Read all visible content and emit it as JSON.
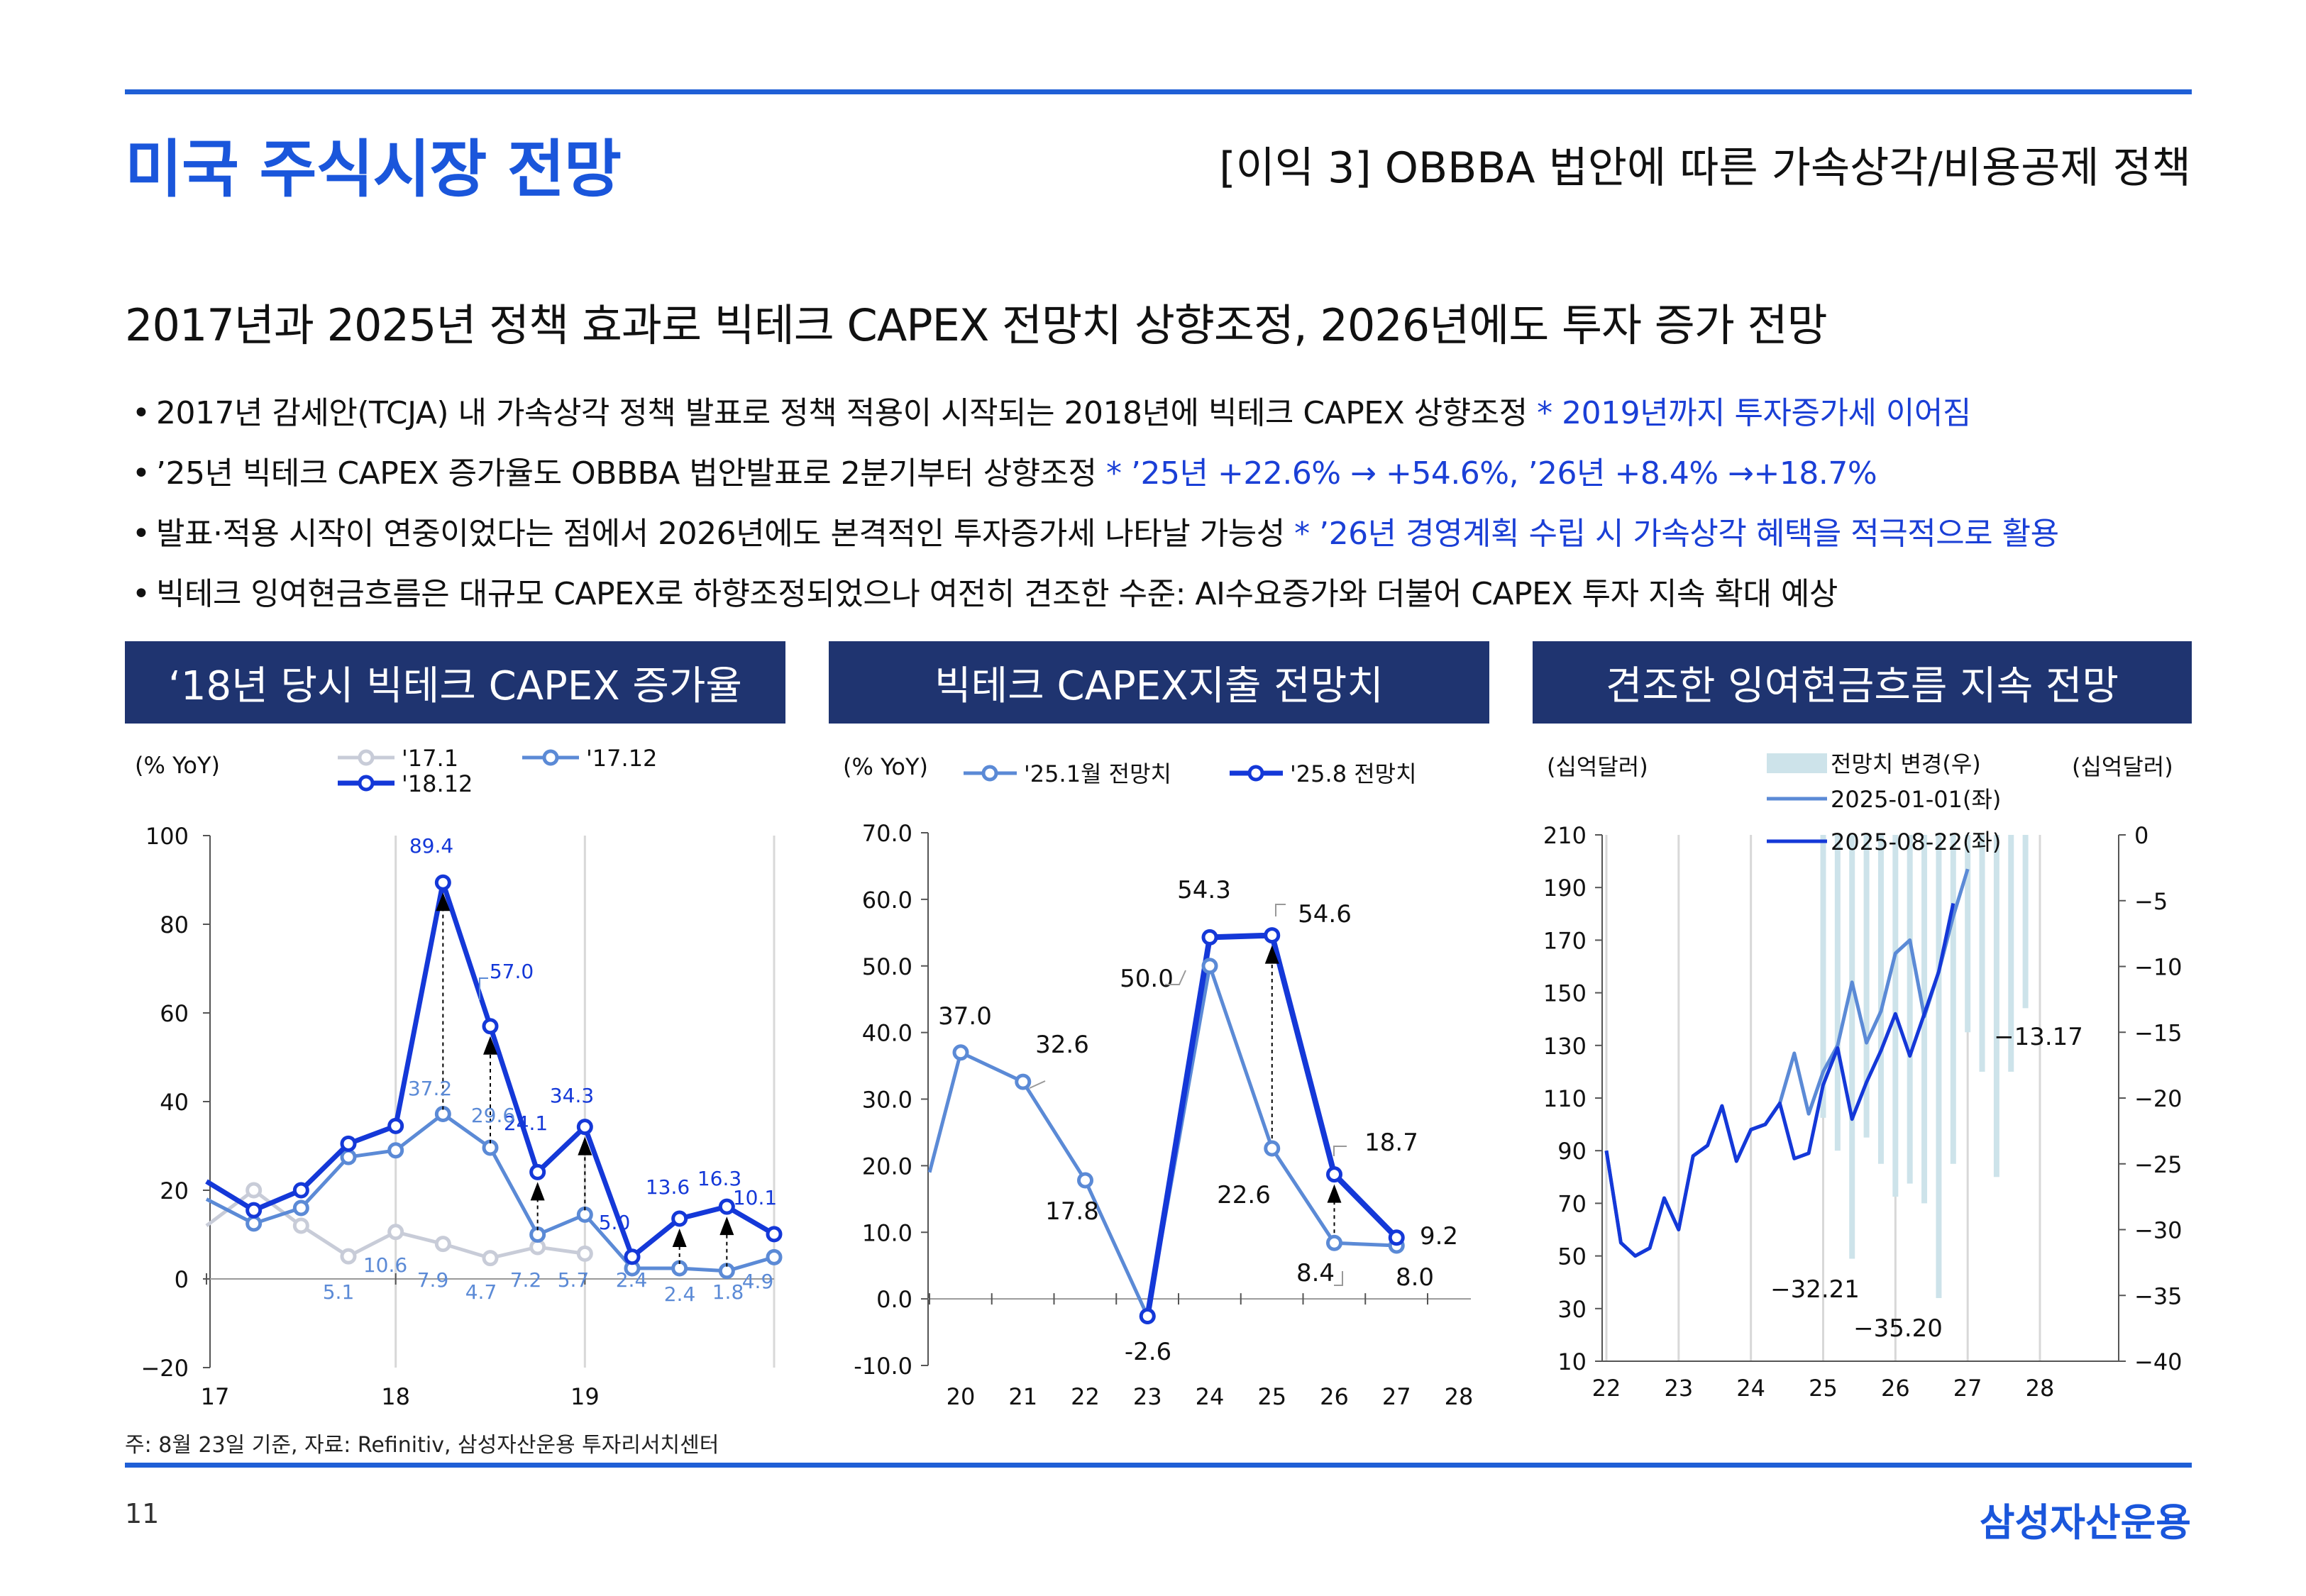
{
  "header": {
    "title": "미국 주식시장 전망",
    "section": "[이익 3] OBBBA 법안에 따른 가속상각/비용공제 정책"
  },
  "headline": "2017년과 2025년 정책 효과로 빅테크 CAPEX 전망치 상향조정, 2026년에도 투자 증가 전망",
  "bullets": [
    {
      "text": "2017년 감세안(TCJA) 내 가속상각 정책 발표로 정책 적용이 시작되는 2018년에 빅테크 CAPEX 상향조정",
      "note": "* 2019년까지 투자증가세 이어짐"
    },
    {
      "text": "’25년 빅테크 CAPEX 증가율도 OBBBA 법안발표로 2분기부터 상향조정",
      "note": "* ’25년 +22.6% → +54.6%, ’26년 +8.4% →+18.7%"
    },
    {
      "text": "발표·적용 시작이 연중이었다는 점에서 2026년에도 본격적인 투자증가세 나타날 가능성",
      "note": "* ’26년 경영계획 수립 시 가속상각 혜택을 적극적으로 활용"
    },
    {
      "text": "빅테크 잉여현금흐름은 대규모 CAPEX로 하향조정되었으나 여전히 견조한 수준: AI수요증가와 더불어 CAPEX 투자 지속 확대 예상",
      "note": ""
    }
  ],
  "panels": [
    {
      "title": "‘18년 당시 빅테크 CAPEX 증가율"
    },
    {
      "title": "빅테크 CAPEX지출 전망치"
    },
    {
      "title": "견조한 잉여현금흐름 지속 전망"
    }
  ],
  "footnote": "주: 8월 23일 기준, 자료: Refinitiv, 삼성자산운용 투자리서치센터",
  "page_number": "11",
  "brand": "삼성자산운용",
  "colors": {
    "accent": "#1a56db",
    "panel_header": "#1f3470",
    "light": "#c8ccd8",
    "mid": "#5b8ad6",
    "dark": "#1438d8",
    "bar": "#cde3ea"
  },
  "chart_data": [
    {
      "type": "line",
      "ylabel": "(% YoY)",
      "ylim": [
        -20,
        100
      ],
      "yticks": [
        "100",
        "80",
        "60",
        "40",
        "20",
        "0",
        "−20"
      ],
      "xticks": [
        "17",
        "18",
        "19"
      ],
      "legend": [
        "'17.1",
        "'17.12",
        "'18.12"
      ],
      "x": [
        17.0,
        17.25,
        17.5,
        17.75,
        18.0,
        18.25,
        18.5,
        18.75,
        19.0,
        19.25,
        19.5,
        19.75,
        20.0
      ],
      "series": [
        {
          "name": "'17.1",
          "values": [
            12,
            20,
            12,
            5.1,
            10.6,
            7.9,
            4.7,
            7.2,
            5.7,
            null,
            null,
            null,
            null
          ]
        },
        {
          "name": "'17.12",
          "values": [
            18,
            12.5,
            16,
            27.5,
            29,
            37.2,
            29.6,
            10,
            14.5,
            2.4,
            2.4,
            1.8,
            4.9
          ]
        },
        {
          "name": "'18.12",
          "values": [
            22,
            15.5,
            20,
            30.5,
            34.5,
            89.4,
            57.0,
            24.1,
            34.3,
            5.0,
            13.6,
            16.3,
            10.1
          ]
        }
      ],
      "data_labels": {
        "dark": [
          "89.4",
          "57.0",
          "24.1",
          "34.3",
          "5.0",
          "13.6",
          "16.3",
          "10.1"
        ],
        "mid": [
          "37.2",
          "29.6",
          "10.6",
          "7.9",
          "4.7",
          "7.2",
          "5.7",
          "2.4",
          "2.4",
          "1.8",
          "4.9",
          "5.1"
        ]
      }
    },
    {
      "type": "line",
      "ylabel": "(% YoY)",
      "ylim": [
        -10,
        70
      ],
      "yticks": [
        "70.0",
        "60.0",
        "50.0",
        "40.0",
        "30.0",
        "20.0",
        "10.0",
        "0.0",
        "-10.0"
      ],
      "categories": [
        "20",
        "21",
        "22",
        "23",
        "24",
        "25",
        "26",
        "27",
        "28"
      ],
      "legend": [
        "'25.1월 전망치",
        "'25.8 전망치"
      ],
      "series": [
        {
          "name": "'25.1월 전망치",
          "x": [
            19.5,
            20,
            21,
            22,
            23,
            24,
            25,
            26,
            27
          ],
          "values": [
            19,
            37.0,
            32.6,
            17.8,
            -2.6,
            50.0,
            22.6,
            8.4,
            8.0
          ]
        },
        {
          "name": "'25.8 전망치",
          "x": [
            23,
            24,
            25,
            26,
            27
          ],
          "values": [
            -2.6,
            54.3,
            54.6,
            18.7,
            9.2
          ]
        }
      ],
      "data_labels": [
        "37.0",
        "32.6",
        "17.8",
        "-2.6",
        "50.0",
        "54.3",
        "54.6",
        "22.6",
        "18.7",
        "8.4",
        "9.2",
        "8.0"
      ]
    },
    {
      "type": "line",
      "ylabel": "(십억달러)",
      "y2label": "(십억달러)",
      "ylim": [
        10,
        210
      ],
      "y2lim": [
        -40,
        0
      ],
      "yticks": [
        "210",
        "190",
        "170",
        "150",
        "130",
        "110",
        "90",
        "70",
        "50",
        "30",
        "10"
      ],
      "y2ticks": [
        "0",
        "-5",
        "-10",
        "-15",
        "-20",
        "-25",
        "-30",
        "-35",
        "-40"
      ],
      "xticks": [
        "22",
        "23",
        "24",
        "25",
        "26",
        "27",
        "28"
      ],
      "legend": [
        "전망치 변경(우)",
        "2025-01-01(좌)",
        "2025-08-22(좌)"
      ],
      "bars": {
        "name": "전망치 변경(우)",
        "x": [
          25.0,
          25.2,
          25.4,
          25.6,
          25.8,
          26.0,
          26.2,
          26.4,
          26.6,
          26.8,
          27.0,
          27.2,
          27.4,
          27.6,
          27.8
        ],
        "values": [
          -21.5,
          -24,
          -32.21,
          -23,
          -25,
          -27.5,
          -26.5,
          -28,
          -35.2,
          -25,
          -15,
          -18,
          -26,
          -18,
          -13.17
        ]
      },
      "series": [
        {
          "name": "2025-01-01(좌)",
          "x": [
            22.0,
            22.2,
            22.4,
            22.6,
            22.8,
            23.0,
            23.2,
            23.4,
            23.6,
            23.8,
            24.0,
            24.2,
            24.4,
            24.6,
            24.8,
            25.0,
            25.2,
            25.4,
            25.6,
            25.8,
            26.0,
            26.2,
            26.4,
            26.6,
            26.8,
            27.0,
            27.2,
            27.4,
            27.6,
            27.8
          ],
          "values": [
            90,
            55,
            50,
            53,
            72,
            60,
            88,
            92,
            107,
            86,
            98,
            100,
            108,
            127,
            104,
            120,
            130,
            154,
            131,
            143,
            165,
            170,
            141,
            158,
            179,
            197,
            null,
            null,
            null,
            null
          ]
        },
        {
          "name": "2025-08-22(좌)",
          "x": [
            22.0,
            22.2,
            22.4,
            22.6,
            22.8,
            23.0,
            23.2,
            23.4,
            23.6,
            23.8,
            24.0,
            24.2,
            24.4,
            24.6,
            24.8,
            25.0,
            25.2,
            25.4,
            25.6,
            25.8,
            26.0,
            26.2,
            26.4,
            26.6,
            26.8,
            27.0,
            27.2,
            27.4,
            27.6,
            27.8
          ],
          "values": [
            90,
            55,
            50,
            53,
            72,
            60,
            88,
            92,
            107,
            86,
            98,
            100,
            108,
            87,
            89,
            115,
            129,
            102,
            116,
            128,
            142,
            126,
            142,
            158,
            184,
            null,
            null,
            null,
            null,
            null
          ]
        }
      ],
      "data_labels": [
        "-32.21",
        "-35.20",
        "-13.17"
      ]
    }
  ]
}
